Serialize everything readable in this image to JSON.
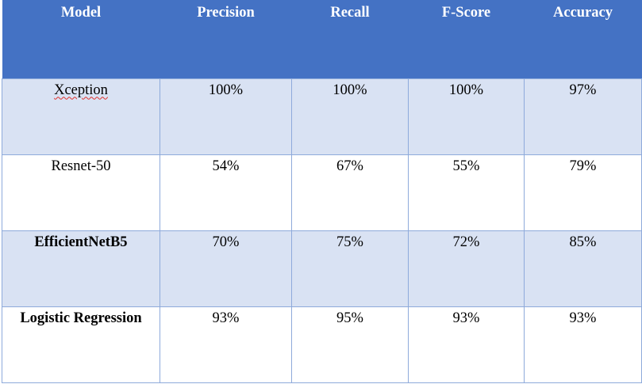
{
  "table": {
    "headers": [
      "Model",
      "Precision",
      "Recall",
      "F-Score",
      "Accuracy"
    ],
    "rows": [
      {
        "model": "Xception",
        "precision": "100%",
        "recall": "100%",
        "f_score": "100%",
        "accuracy": "97%"
      },
      {
        "model": "Resnet-50",
        "precision": "54%",
        "recall": "67%",
        "f_score": "55%",
        "accuracy": "79%"
      },
      {
        "model": "EfficientNetB5",
        "precision": "70%",
        "recall": "75%",
        "f_score": "72%",
        "accuracy": "85%"
      },
      {
        "model": "Logistic Regression",
        "precision": "93%",
        "recall": "95%",
        "f_score": "93%",
        "accuracy": "93%"
      }
    ]
  },
  "colors": {
    "header_background": "#4472c4",
    "header_text": "#ffffff",
    "band_row": "#d9e2f3",
    "plain_row": "#ffffff",
    "border": "#8eaadb",
    "spellcheck_underline": "#e0302a"
  }
}
